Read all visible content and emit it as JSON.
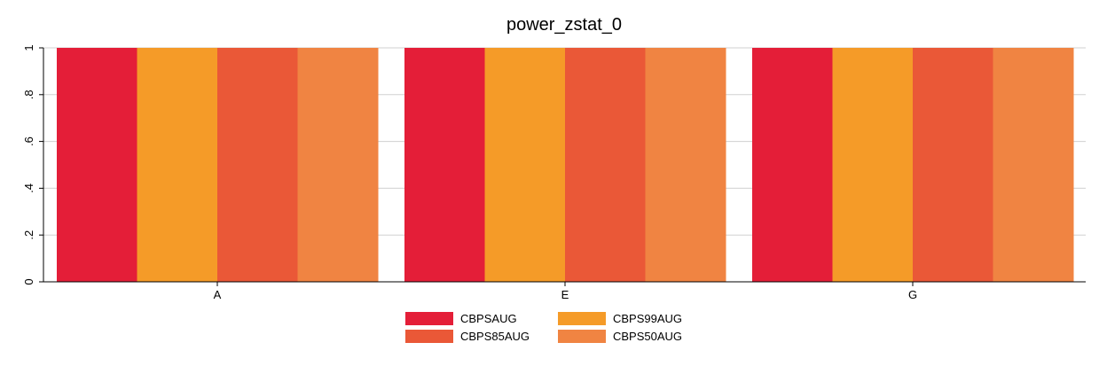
{
  "chart_data": {
    "type": "bar",
    "title": "power_zstat_0",
    "xlabel": "",
    "ylabel": "",
    "categories": [
      "A",
      "E",
      "G"
    ],
    "series": [
      {
        "name": "CBPSAUG",
        "color": "#e41e38",
        "values": [
          1,
          1,
          1
        ]
      },
      {
        "name": "CBPS99AUG",
        "color": "#f59b28",
        "values": [
          1,
          1,
          1
        ]
      },
      {
        "name": "CBPS85AUG",
        "color": "#ea5837",
        "values": [
          1,
          1,
          1
        ]
      },
      {
        "name": "CBPS50AUG",
        "color": "#f08442",
        "values": [
          1,
          1,
          1
        ]
      }
    ],
    "ylim": [
      0,
      1
    ],
    "yticks": [
      0,
      0.2,
      0.4,
      0.6,
      0.8,
      1
    ],
    "ytick_labels": [
      "0",
      ".2",
      ".4",
      ".6",
      ".8",
      "1"
    ],
    "grid": true,
    "legend_position": "bottom"
  }
}
